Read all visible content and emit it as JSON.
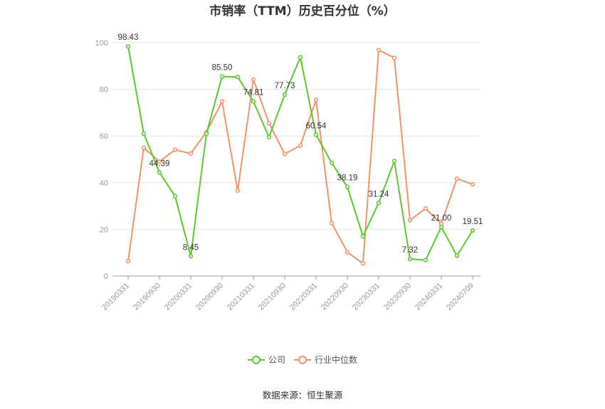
{
  "chart_data": {
    "type": "line",
    "title": "市销率（TTM）历史百分位（%）",
    "x": [
      "20190331",
      "20190630",
      "20190930",
      "20191231",
      "20200331",
      "20200630",
      "20200930",
      "20201231",
      "20210331",
      "20210630",
      "20210930",
      "20211231",
      "20220331",
      "20220630",
      "20220930",
      "20221231",
      "20230331",
      "20230630",
      "20230930",
      "20231231",
      "20240331",
      "20240630",
      "20240709"
    ],
    "x_tick_labels": [
      "20190331",
      "20190930",
      "20200331",
      "20200930",
      "20210331",
      "20210930",
      "20220331",
      "20220930",
      "20230331",
      "20230930",
      "20240331",
      "20240709"
    ],
    "y_ticks": [
      "0",
      "20",
      "40",
      "60",
      "80",
      "100"
    ],
    "ylim": [
      0,
      100
    ],
    "grid": true,
    "legend_position": "bottom",
    "series": [
      {
        "name": "公司",
        "color": "#5bc72d",
        "values": [
          98.43,
          61.0,
          44.39,
          34.2,
          8.45,
          61.0,
          85.5,
          85.3,
          74.81,
          59.5,
          77.73,
          93.7,
          60.54,
          48.5,
          38.19,
          17.0,
          31.24,
          49.3,
          7.32,
          6.8,
          21.0,
          8.7,
          19.51
        ],
        "labels": [
          "98.43",
          "",
          "44.39",
          "",
          "8.45",
          "",
          "85.50",
          "",
          "74.81",
          "",
          "77.73",
          "",
          "60.54",
          "",
          "38.19",
          "",
          "31.24",
          "",
          "7.32",
          "",
          "21.00",
          "",
          "19.51"
        ]
      },
      {
        "name": "行业中位数",
        "color": "#f29266",
        "values": [
          6.4,
          55.0,
          49.0,
          54.1,
          52.5,
          61.7,
          74.8,
          36.6,
          84.2,
          65.5,
          52.3,
          55.9,
          75.5,
          22.7,
          10.2,
          5.4,
          96.8,
          93.5,
          23.9,
          28.9,
          22.4,
          41.7,
          39.3
        ],
        "labels": []
      }
    ]
  },
  "footer": {
    "source": "数据来源：恒生聚源"
  }
}
